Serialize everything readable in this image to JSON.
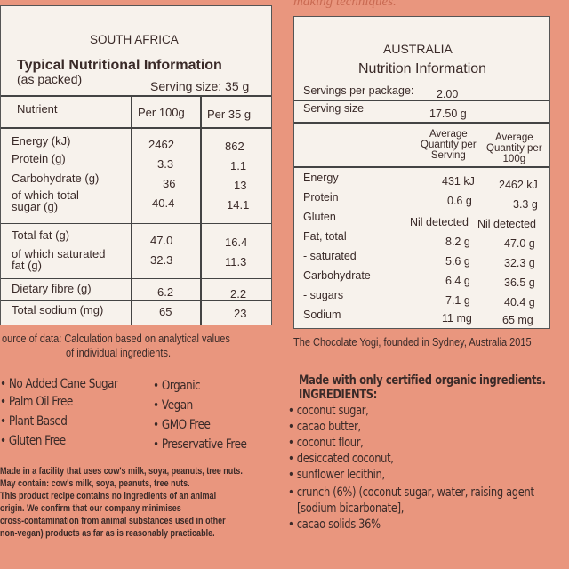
{
  "top_text": "making techniques.",
  "sa": {
    "country": "SOUTH AFRICA",
    "title": "Typical Nutritional Information",
    "as_packed": "(as packed)",
    "serving": "Serving size: 35 g",
    "headers": [
      "Nutrient",
      "Per 100g",
      "Per 35 g"
    ],
    "rows": [
      {
        "n": "Energy (kJ)",
        "a": "2462",
        "b": "862"
      },
      {
        "n": "Protein (g)",
        "a": "3.3",
        "b": "1.1"
      },
      {
        "n": "Carbohydrate (g)",
        "a": "36",
        "b": "13"
      },
      {
        "n": "of which total",
        "n2": "sugar (g)",
        "a": "40.4",
        "b": "14.1"
      },
      {
        "n": "Total fat (g)",
        "a": "47.0",
        "b": "16.4"
      },
      {
        "n": "of which saturated",
        "n2": "fat (g)",
        "a": "32.3",
        "b": "11.3"
      },
      {
        "n": "Dietary fibre (g)",
        "a": "6.2",
        "b": "2.2"
      },
      {
        "n": "Total sodium (mg)",
        "a": "65",
        "b": "23"
      }
    ],
    "source1": "ource of data: Calculation based on analytical values",
    "source2": "of individual ingredients."
  },
  "au": {
    "country": "AUSTRALIA",
    "title": "Nutrition Information",
    "servings_label": "Servings per package:",
    "servings_value": "2.00",
    "serving_size_label": "Serving size",
    "serving_size_value": "17.50 g",
    "col1": [
      "Average",
      "Quantity per",
      "Serving"
    ],
    "col2": [
      "Average",
      "Quantity per",
      "100g"
    ],
    "rows": [
      {
        "n": "Energy",
        "a": "431 kJ",
        "b": "2462 kJ"
      },
      {
        "n": "Protein",
        "a": "0.6 g",
        "b": "3.3 g"
      },
      {
        "n": "Gluten",
        "a": "Nil detected",
        "b": "Nil detected"
      },
      {
        "n": "Fat, total",
        "a": "8.2 g",
        "b": "47.0 g"
      },
      {
        "n": "- saturated",
        "a": "5.6 g",
        "b": "32.3 g"
      },
      {
        "n": "Carbohydrate",
        "a": "6.4 g",
        "b": "36.5 g"
      },
      {
        "n": "- sugars",
        "a": "7.1 g",
        "b": "40.4 g"
      },
      {
        "n": "Sodium",
        "a": "11 mg",
        "b": "65 mg"
      }
    ],
    "footer": "The Chocolate Yogi, founded in Sydney, Australia 2015"
  },
  "claims_left": [
    "No Added Cane Sugar",
    "Palm Oil Free",
    "Plant Based",
    "Gluten Free"
  ],
  "claims_right": [
    "Organic",
    "Vegan",
    "GMO Free",
    "Preservative Free"
  ],
  "allergen": [
    "Made in a facility that uses cow's milk, soya, peanuts, tree nuts.",
    "May contain: cow's milk, soya, peanuts, tree nuts.",
    "This product recipe contains no ingredients of an animal",
    "origin. We confirm that our company minimises",
    "cross-contamination from animal substances used in other",
    "non-vegan) products as far as is reasonably practicable."
  ],
  "ingredients": {
    "heading1": "Made with only certified organic ingredients.",
    "heading2": "INGREDIENTS:",
    "items": [
      "coconut sugar,",
      "cacao butter,",
      "coconut flour,",
      "desiccated coconut,",
      "sunflower lecithin,",
      "crunch (6%) (coconut sugar, water, raising agent",
      "[sodium bicarbonate],",
      "cacao solids 36%"
    ]
  }
}
